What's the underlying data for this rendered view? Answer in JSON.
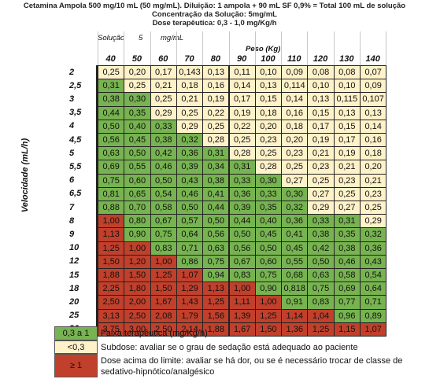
{
  "header": {
    "title": "Cetamina Ampola 500 mg/10 mL (50 mg/mL). Diluição: 1 ampola + 90 mL SF 0,9% = Total 100 mL de solução",
    "concentration": "Concentração da Solução: 5mg/mL",
    "dose": "Dose terapêutica: 0,3 - 1,0 mg/Kg/h"
  },
  "solution": {
    "label": "Solução",
    "value": "5",
    "unit": "mg/mL"
  },
  "weight_label": "Peso (Kg)",
  "velocity_label": "Velocidade (mL/h)",
  "weights": [
    "40",
    "50",
    "60",
    "70",
    "80",
    "90",
    "100",
    "110",
    "120",
    "130",
    "140"
  ],
  "rows": [
    {
      "v": "2",
      "vals": [
        "0,25",
        "0,20",
        "0,17",
        "0,143",
        "0,13",
        "0,11",
        "0,10",
        "0,09",
        "0,08",
        "0,08",
        "0,07"
      ]
    },
    {
      "v": "2,5",
      "vals": [
        "0,31",
        "0,25",
        "0,21",
        "0,18",
        "0,16",
        "0,14",
        "0,13",
        "0,114",
        "0,10",
        "0,10",
        "0,09"
      ]
    },
    {
      "v": "3",
      "vals": [
        "0,38",
        "0,30",
        "0,25",
        "0,21",
        "0,19",
        "0,17",
        "0,15",
        "0,14",
        "0,13",
        "0,115",
        "0,107"
      ]
    },
    {
      "v": "3,5",
      "vals": [
        "0,44",
        "0,35",
        "0,29",
        "0,25",
        "0,22",
        "0,19",
        "0,18",
        "0,16",
        "0,15",
        "0,13",
        "0,13"
      ]
    },
    {
      "v": "4",
      "vals": [
        "0,50",
        "0,40",
        "0,33",
        "0,29",
        "0,25",
        "0,22",
        "0,20",
        "0,18",
        "0,17",
        "0,15",
        "0,14"
      ]
    },
    {
      "v": "4,5",
      "vals": [
        "0,56",
        "0,45",
        "0,38",
        "0,32",
        "0,28",
        "0,25",
        "0,23",
        "0,20",
        "0,19",
        "0,17",
        "0,16"
      ]
    },
    {
      "v": "5",
      "vals": [
        "0,63",
        "0,50",
        "0,42",
        "0,36",
        "0,31",
        "0,28",
        "0,25",
        "0,23",
        "0,21",
        "0,19",
        "0,18"
      ]
    },
    {
      "v": "5,5",
      "vals": [
        "0,69",
        "0,55",
        "0,46",
        "0,39",
        "0,34",
        "0,31",
        "0,28",
        "0,25",
        "0,23",
        "0,21",
        "0,20"
      ]
    },
    {
      "v": "6",
      "vals": [
        "0,75",
        "0,60",
        "0,50",
        "0,43",
        "0,38",
        "0,33",
        "0,30",
        "0,27",
        "0,25",
        "0,23",
        "0,21"
      ]
    },
    {
      "v": "6,5",
      "vals": [
        "0,81",
        "0,65",
        "0,54",
        "0,46",
        "0,41",
        "0,36",
        "0,33",
        "0,30",
        "0,27",
        "0,25",
        "0,23"
      ]
    },
    {
      "v": "7",
      "vals": [
        "0,88",
        "0,70",
        "0,58",
        "0,50",
        "0,44",
        "0,39",
        "0,35",
        "0,32",
        "0,29",
        "0,27",
        "0,25"
      ]
    },
    {
      "v": "8",
      "vals": [
        "1,00",
        "0,80",
        "0,67",
        "0,57",
        "0,50",
        "0,44",
        "0,40",
        "0,36",
        "0,33",
        "0,31",
        "0,29"
      ]
    },
    {
      "v": "9",
      "vals": [
        "1,13",
        "0,90",
        "0,75",
        "0,64",
        "0,56",
        "0,50",
        "0,45",
        "0,41",
        "0,38",
        "0,35",
        "0,32"
      ]
    },
    {
      "v": "10",
      "vals": [
        "1,25",
        "1,00",
        "0,83",
        "0,71",
        "0,63",
        "0,56",
        "0,50",
        "0,45",
        "0,42",
        "0,38",
        "0,36"
      ]
    },
    {
      "v": "12",
      "vals": [
        "1,50",
        "1,20",
        "1,00",
        "0,86",
        "0,75",
        "0,67",
        "0,60",
        "0,55",
        "0,50",
        "0,46",
        "0,43"
      ]
    },
    {
      "v": "15",
      "vals": [
        "1,88",
        "1,50",
        "1,25",
        "1,07",
        "0,94",
        "0,83",
        "0,75",
        "0,68",
        "0,63",
        "0,58",
        "0,54"
      ]
    },
    {
      "v": "18",
      "vals": [
        "2,25",
        "1,80",
        "1,50",
        "1,29",
        "1,13",
        "1,00",
        "0,90",
        "0,818",
        "0,75",
        "0,69",
        "0,64"
      ]
    },
    {
      "v": "20",
      "vals": [
        "2,50",
        "2,00",
        "1,67",
        "1,43",
        "1,25",
        "1,11",
        "1,00",
        "0,91",
        "0,83",
        "0,77",
        "0,71"
      ]
    },
    {
      "v": "25",
      "vals": [
        "3,13",
        "2,50",
        "2,08",
        "1,79",
        "1,56",
        "1,39",
        "1,25",
        "1,14",
        "1,04",
        "0,96",
        "0,89"
      ]
    },
    {
      "v": "30",
      "vals": [
        "3,75",
        "3,00",
        "2,50",
        "2,14",
        "1,88",
        "1,67",
        "1,50",
        "1,36",
        "1,25",
        "1,15",
        "1,07"
      ]
    }
  ],
  "legend": [
    {
      "swatch": "0,3 a 1",
      "text": "Faixa terapêutica (mg/Kg/h)",
      "color": "#77b350"
    },
    {
      "swatch": "<0,3",
      "text": "Subdose: avaliar se o grau de sedação está adequado ao paciente",
      "color": "#fff2c9"
    },
    {
      "swatch": "≥ 1",
      "text": "Dose acima do limite: avaliar se há dor, ou se é necessário trocar de classe de sedativo-hipnótico/analgésico",
      "color": "#c0402c"
    }
  ],
  "colors": {
    "therapeutic": "#77b350",
    "underdose": "#fff2c9",
    "overdose": "#c0402c"
  }
}
